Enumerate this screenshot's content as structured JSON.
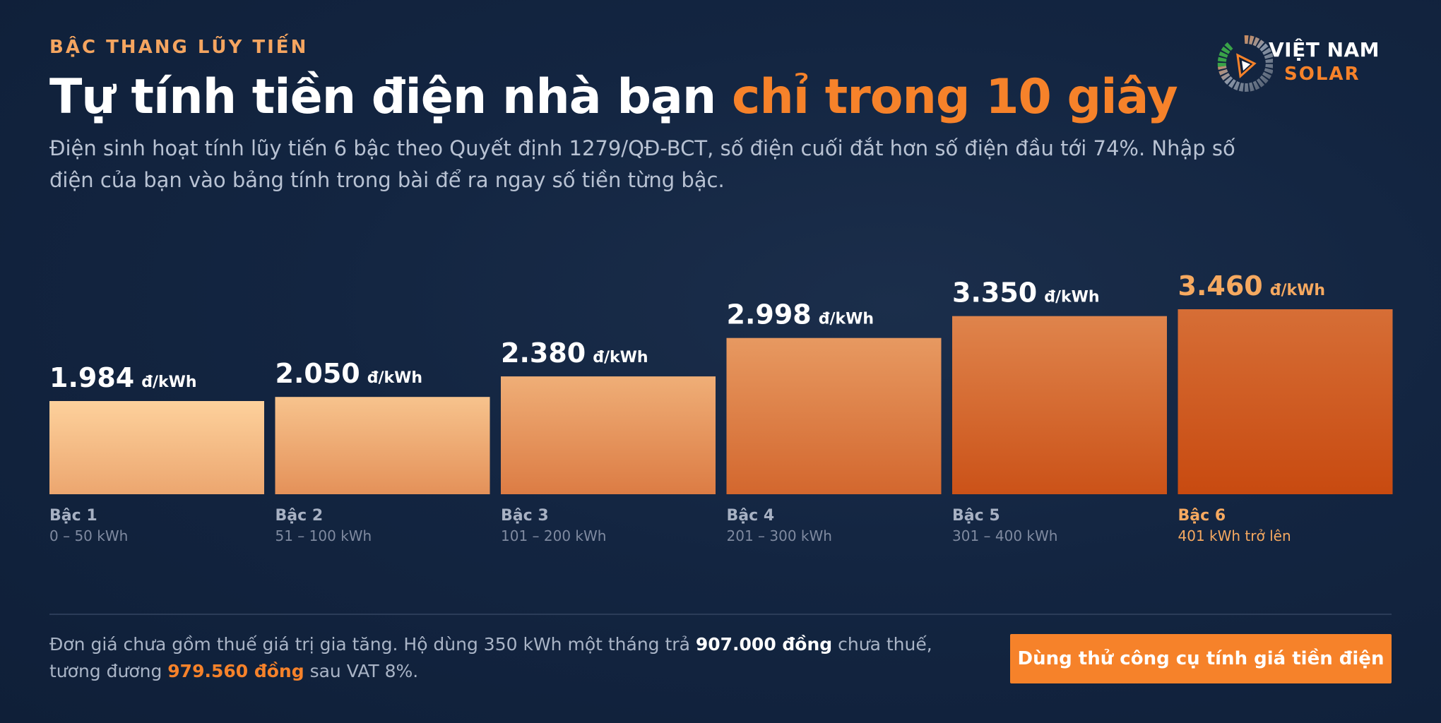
{
  "header": {
    "eyebrow": "BẬC THANG LŨY TIẾN",
    "title_part1": "Tự tính tiền điện nhà bạn ",
    "title_part2": "chỉ trong 10 giây",
    "subtitle": "Điện sinh hoạt tính lũy tiến 6 bậc theo Quyết định 1279/QĐ-BCT, số điện cuối đắt hơn số điện đầu tới 74%. Nhập số điện của bạn vào bảng tính trong bài để ra ngay số tiền từng bậc."
  },
  "logo": {
    "line1": "VIỆT NAM",
    "line2": "SOLAR",
    "icon": "solar-panel-ring-icon"
  },
  "chart_data": {
    "type": "bar",
    "categories": [
      "Bậc 1",
      "Bậc 2",
      "Bậc 3",
      "Bậc 4",
      "Bậc 5",
      "Bậc 6"
    ],
    "ranges": [
      "0 – 50 kWh",
      "51 – 100 kWh",
      "101 – 200 kWh",
      "201 – 300 kWh",
      "301 – 400 kWh",
      "401 kWh trở lên"
    ],
    "values": [
      1984,
      2050,
      2380,
      2998,
      3350,
      3460
    ],
    "value_labels": [
      "1.984",
      "2.050",
      "2.380",
      "2.998",
      "3.350",
      "3.460"
    ],
    "unit": "đ/kWh",
    "highlight_index": 5,
    "grid": false,
    "colors": {
      "bar_light": "#fdd19c",
      "bar_dark": "#c84a10",
      "highlight_text": "#f6a960",
      "label_text": "#ffffff",
      "category_text": "#a7b1c3",
      "range_text": "#7f8aa0"
    }
  },
  "footer": {
    "note_part1": "Đơn giá chưa gồm thuế giá trị gia tăng. Hộ dùng 350 kWh một tháng trả ",
    "note_amount": "907.000 đồng",
    "note_part2": " chưa thuế, tương đương ",
    "note_amount_vat": "979.560 đồng",
    "note_part3": " sau VAT 8%.",
    "cta_label": "Dùng thử công cụ tính giá tiền điện"
  },
  "colors": {
    "background": "#132541",
    "accent": "#f6822a",
    "eyebrow": "#f5a560"
  }
}
